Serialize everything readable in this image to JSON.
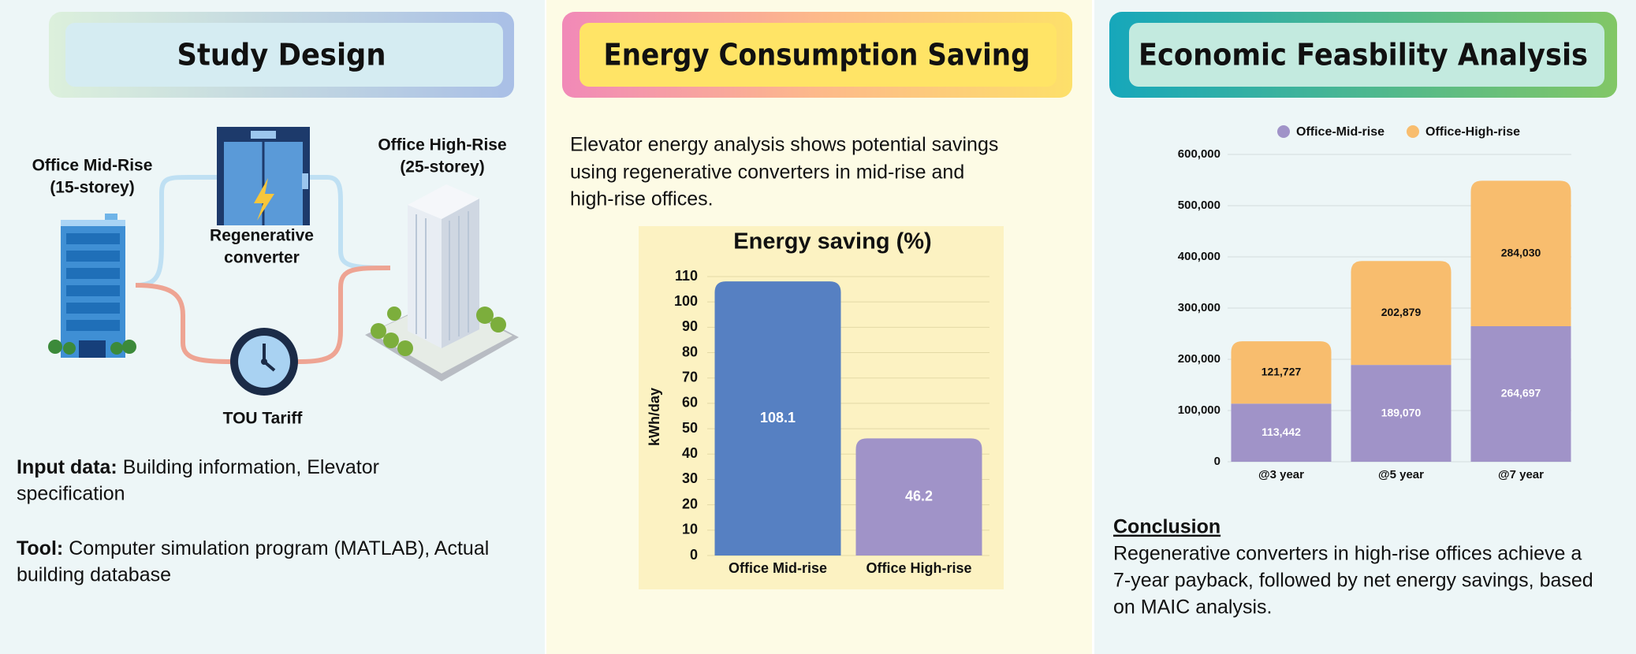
{
  "panels": [
    {
      "title": "Study Design",
      "diagram": {
        "mid_rise": [
          "Office Mid-Rise",
          "(15-storey)"
        ],
        "high_rise": [
          "Office High-Rise",
          "(25-storey)"
        ],
        "converter": [
          "Regenerative",
          "converter"
        ],
        "tariff": "TOU Tariff"
      },
      "input": {
        "label": "Input data:",
        "lines": [
          "Building information, Elevator",
          "specification"
        ]
      },
      "tool": {
        "label": "Tool:",
        "lines": [
          "Computer simulation program (MATLAB), Actual",
          "building database"
        ]
      }
    },
    {
      "title": "Energy Consumption Saving",
      "text": [
        "Elevator energy analysis shows potential savings",
        "using regenerative converters in mid-rise and",
        "high-rise offices."
      ]
    },
    {
      "title": "Economic Feasbility Analysis",
      "conclusion": {
        "heading": "Conclusion",
        "lines": [
          "Regenerative converters in high-rise offices achieve a",
          "7-year payback, followed by net energy savings, based",
          "on MAIC analysis."
        ]
      }
    }
  ],
  "chart_data": [
    {
      "type": "bar",
      "title": "Energy saving (%)",
      "y_label": "kWh/day",
      "categories": [
        "Office Mid-rise",
        "Office High-rise"
      ],
      "values": [
        108.1,
        46.2
      ],
      "colors": [
        "#5680c2",
        "#a093c8"
      ],
      "ylim": [
        0,
        110
      ],
      "yticks": [
        0,
        10,
        20,
        30,
        40,
        50,
        60,
        70,
        80,
        90,
        100,
        110
      ],
      "grid": true
    },
    {
      "type": "stacked_bar",
      "categories": [
        "@3 year",
        "@5 year",
        "@7 year"
      ],
      "series": [
        {
          "name": "Office-Mid-rise",
          "color": "#a093c8",
          "values": [
            113442,
            189070,
            264697
          ],
          "value_labels": [
            "113,442",
            "189,070",
            "264,697"
          ]
        },
        {
          "name": "Office-High-rise",
          "color": "#f8bd6e",
          "values": [
            121727,
            202879,
            284030
          ],
          "value_labels": [
            "121,727",
            "202,879",
            "284,030"
          ]
        }
      ],
      "ylim": [
        0,
        600000
      ],
      "yticks": [
        0,
        {
          "value": 100000,
          "label": "100,000"
        },
        {
          "value": 200000,
          "label": "200,000"
        },
        {
          "value": 300000,
          "label": "300,000"
        },
        {
          "value": 400000,
          "label": "400,000"
        },
        {
          "value": 500000,
          "label": "500,000"
        },
        {
          "value": 600000,
          "label": "600,000"
        }
      ],
      "grid": true,
      "legend": "top"
    }
  ]
}
